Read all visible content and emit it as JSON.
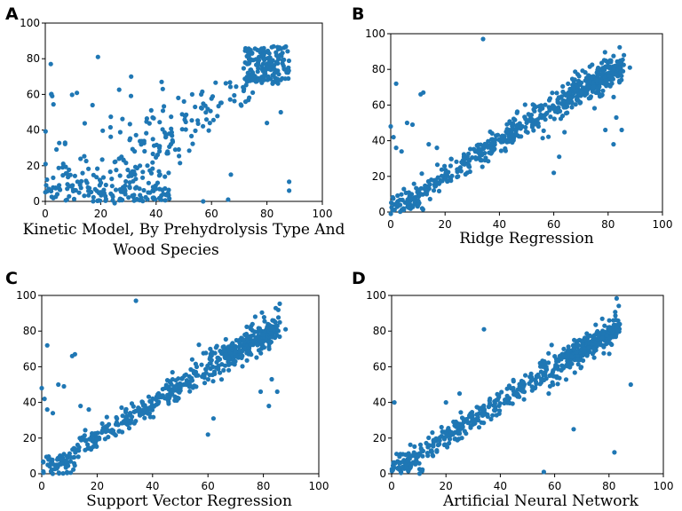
{
  "chart_data": [
    {
      "id": "A",
      "type": "scatter",
      "panel_label": "A",
      "xlabel_lines": [
        "Kinetic Model, By Prehydrolysis Type And",
        "Wood Species"
      ],
      "ylabel": "",
      "xlim": [
        0,
        100
      ],
      "ylim": [
        0,
        100
      ],
      "xticks": [
        "0",
        "20",
        "40",
        "60",
        "80",
        "100"
      ],
      "yticks": [
        "0",
        "20",
        "40",
        "60",
        "80",
        "100"
      ],
      "color": "#1f77b4",
      "style": "kinetic"
    },
    {
      "id": "B",
      "type": "scatter",
      "panel_label": "B",
      "xlabel_lines": [
        "Ridge Regression"
      ],
      "ylabel": "",
      "xlim": [
        0,
        100
      ],
      "ylim": [
        0,
        100
      ],
      "xticks": [
        "0",
        "20",
        "40",
        "60",
        "80",
        "100"
      ],
      "yticks": [
        "0",
        "20",
        "40",
        "60",
        "80",
        "100"
      ],
      "color": "#1f77b4",
      "style": "linear"
    },
    {
      "id": "C",
      "type": "scatter",
      "panel_label": "C",
      "xlabel_lines": [
        "Support Vector Regression"
      ],
      "ylabel": "",
      "xlim": [
        0,
        100
      ],
      "ylim": [
        0,
        100
      ],
      "xticks": [
        "0",
        "20",
        "40",
        "60",
        "80",
        "100"
      ],
      "yticks": [
        "0",
        "20",
        "40",
        "60",
        "80",
        "100"
      ],
      "color": "#1f77b4",
      "style": "linear"
    },
    {
      "id": "D",
      "type": "scatter",
      "panel_label": "D",
      "xlabel_lines": [
        "Artificial Neural Network"
      ],
      "ylabel": "",
      "xlim": [
        0,
        100
      ],
      "ylim": [
        0,
        100
      ],
      "xticks": [
        "0",
        "20",
        "40",
        "60",
        "80",
        "100"
      ],
      "yticks": [
        "0",
        "20",
        "40",
        "60",
        "80",
        "100"
      ],
      "color": "#1f77b4",
      "style": "ann"
    }
  ]
}
